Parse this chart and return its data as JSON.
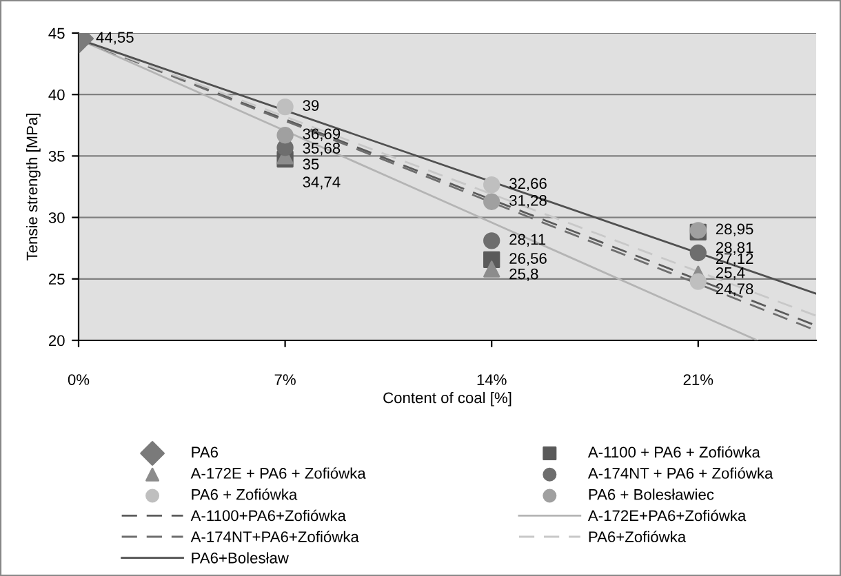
{
  "chart_data": {
    "type": "scatter",
    "xlabel": "Content of coal [%]",
    "ylabel": "Tensie strength [MPa]",
    "xlim": [
      0,
      25
    ],
    "xticks": [
      {
        "value": 0,
        "label": "0%"
      },
      {
        "value": 7,
        "label": "7%"
      },
      {
        "value": 14,
        "label": "14%"
      },
      {
        "value": 21,
        "label": "21%"
      }
    ],
    "ylim": [
      20,
      45
    ],
    "yticks": [
      20,
      25,
      30,
      35,
      40,
      45
    ],
    "grid": "y",
    "legend": "bottom",
    "series": [
      {
        "name": "PA6",
        "marker": "diamond",
        "color": "#7a7a7a",
        "x": [
          0
        ],
        "values": [
          44.55
        ],
        "value_labels": [
          "44,55"
        ]
      },
      {
        "name": "A-1100 + PA6 + Zofiówka",
        "marker": "square",
        "color": "#5a5a5a",
        "x": [
          7,
          14,
          21
        ],
        "values": [
          34.74,
          26.56,
          28.81
        ],
        "value_labels": [
          "34,74",
          "26,56",
          "28,81"
        ]
      },
      {
        "name": "A-172E + PA6 + Zofiówka",
        "marker": "triangle",
        "color": "#8c8c8c",
        "x": [
          7,
          14,
          21
        ],
        "values": [
          35,
          25.8,
          25.4
        ],
        "value_labels": [
          "35",
          "25,8",
          "25,4"
        ]
      },
      {
        "name": "A-174NT + PA6 + Zofiówka",
        "marker": "circle",
        "color": "#6e6e6e",
        "x": [
          7,
          14,
          21
        ],
        "values": [
          35.68,
          28.11,
          27.12
        ],
        "value_labels": [
          "35,68",
          "28,11",
          "27,12"
        ]
      },
      {
        "name": "PA6 + Zofiówka",
        "marker": "circle",
        "color": "#bfbfbf",
        "x": [
          7,
          14,
          21
        ],
        "values": [
          39,
          32.66,
          24.78
        ],
        "value_labels": [
          "39",
          "32,66",
          "24,78"
        ]
      },
      {
        "name": "PA6 + Bolesławiec",
        "marker": "circle",
        "color": "#a0a0a0",
        "x": [
          7,
          14,
          21
        ],
        "values": [
          36.69,
          31.28,
          28.95
        ],
        "value_labels": [
          "36,69",
          "31,28",
          "28,95"
        ]
      },
      {
        "name": "A-1100+PA6+Zofiówka",
        "type": "line",
        "line_style": "dashed",
        "color": "#5a5a5a",
        "x": [
          0,
          25
        ],
        "values": [
          44.5,
          21.2
        ]
      },
      {
        "name": "A-172E+PA6+Zofiówka",
        "type": "line",
        "line_style": "solid",
        "color": "#b4b4b4",
        "x": [
          0,
          23
        ],
        "values": [
          44.5,
          20
        ]
      },
      {
        "name": "A-174NT+PA6+Zofiówka",
        "type": "line",
        "line_style": "dashed",
        "color": "#6e6e6e",
        "x": [
          0,
          25
        ],
        "values": [
          44.5,
          20.8
        ]
      },
      {
        "name": "PA6+Zofiówka",
        "type": "line",
        "line_style": "dashed",
        "color": "#c8c8c8",
        "x": [
          0,
          25
        ],
        "values": [
          44.5,
          22
        ]
      },
      {
        "name": "PA6+Bolesław",
        "type": "line",
        "line_style": "solid",
        "color": "#505050",
        "x": [
          0,
          25
        ],
        "values": [
          44.5,
          23.8
        ]
      }
    ]
  }
}
